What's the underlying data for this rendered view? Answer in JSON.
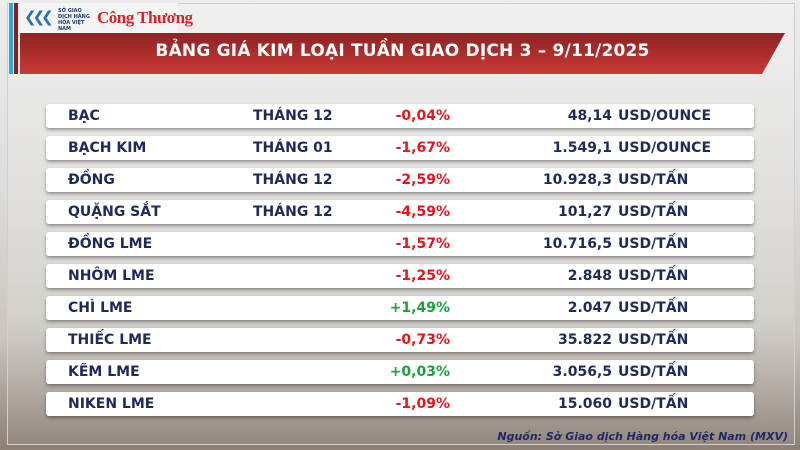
{
  "logo": {
    "org": "SỞ GIAO DỊCH HÀNG HÓA VIỆT NAM",
    "brand": "Công Thương"
  },
  "title": "BẢNG GIÁ KIM LOẠI TUẦN GIAO DỊCH 3 – 9/11/2025",
  "rows": [
    {
      "name": "BẠC",
      "month": "THÁNG 12",
      "change": "-0,04%",
      "price": "48,14",
      "unit": "USD/OUNCE",
      "dir": "neg"
    },
    {
      "name": "BẠCH KIM",
      "month": "THÁNG 01",
      "change": "-1,67%",
      "price": "1.549,1",
      "unit": "USD/OUNCE",
      "dir": "neg"
    },
    {
      "name": "ĐỒNG",
      "month": "THÁNG 12",
      "change": "-2,59%",
      "price": "10.928,3",
      "unit": "USD/TẤN",
      "dir": "neg"
    },
    {
      "name": "QUẶNG SẮT",
      "month": "THÁNG 12",
      "change": "-4,59%",
      "price": "101,27",
      "unit": "USD/TẤN",
      "dir": "neg"
    },
    {
      "name": "ĐỒNG LME",
      "month": "",
      "change": "-1,57%",
      "price": "10.716,5",
      "unit": "USD/TẤN",
      "dir": "neg"
    },
    {
      "name": "NHÔM LME",
      "month": "",
      "change": "-1,25%",
      "price": "2.848",
      "unit": "USD/TẤN",
      "dir": "neg"
    },
    {
      "name": "CHÌ LME",
      "month": "",
      "change": "+1,49%",
      "price": "2.047",
      "unit": "USD/TẤN",
      "dir": "pos"
    },
    {
      "name": "THIẾC LME",
      "month": "",
      "change": "-0,73%",
      "price": "35.822",
      "unit": "USD/TẤN",
      "dir": "neg"
    },
    {
      "name": "KẼM LME",
      "month": "",
      "change": "+0,03%",
      "price": "3.056,5",
      "unit": "USD/TẤN",
      "dir": "pos"
    },
    {
      "name": "NIKEN LME",
      "month": "",
      "change": "-1,09%",
      "price": "15.060",
      "unit": "USD/TẤN",
      "dir": "neg"
    }
  ],
  "source": "Nguồn: Sở Giao dịch Hàng hóa Việt Nam (MXV)",
  "colors": {
    "negative": "#e8141c",
    "positive": "#17a33a",
    "header": "#b3302e",
    "text": "#1d2a5a"
  }
}
